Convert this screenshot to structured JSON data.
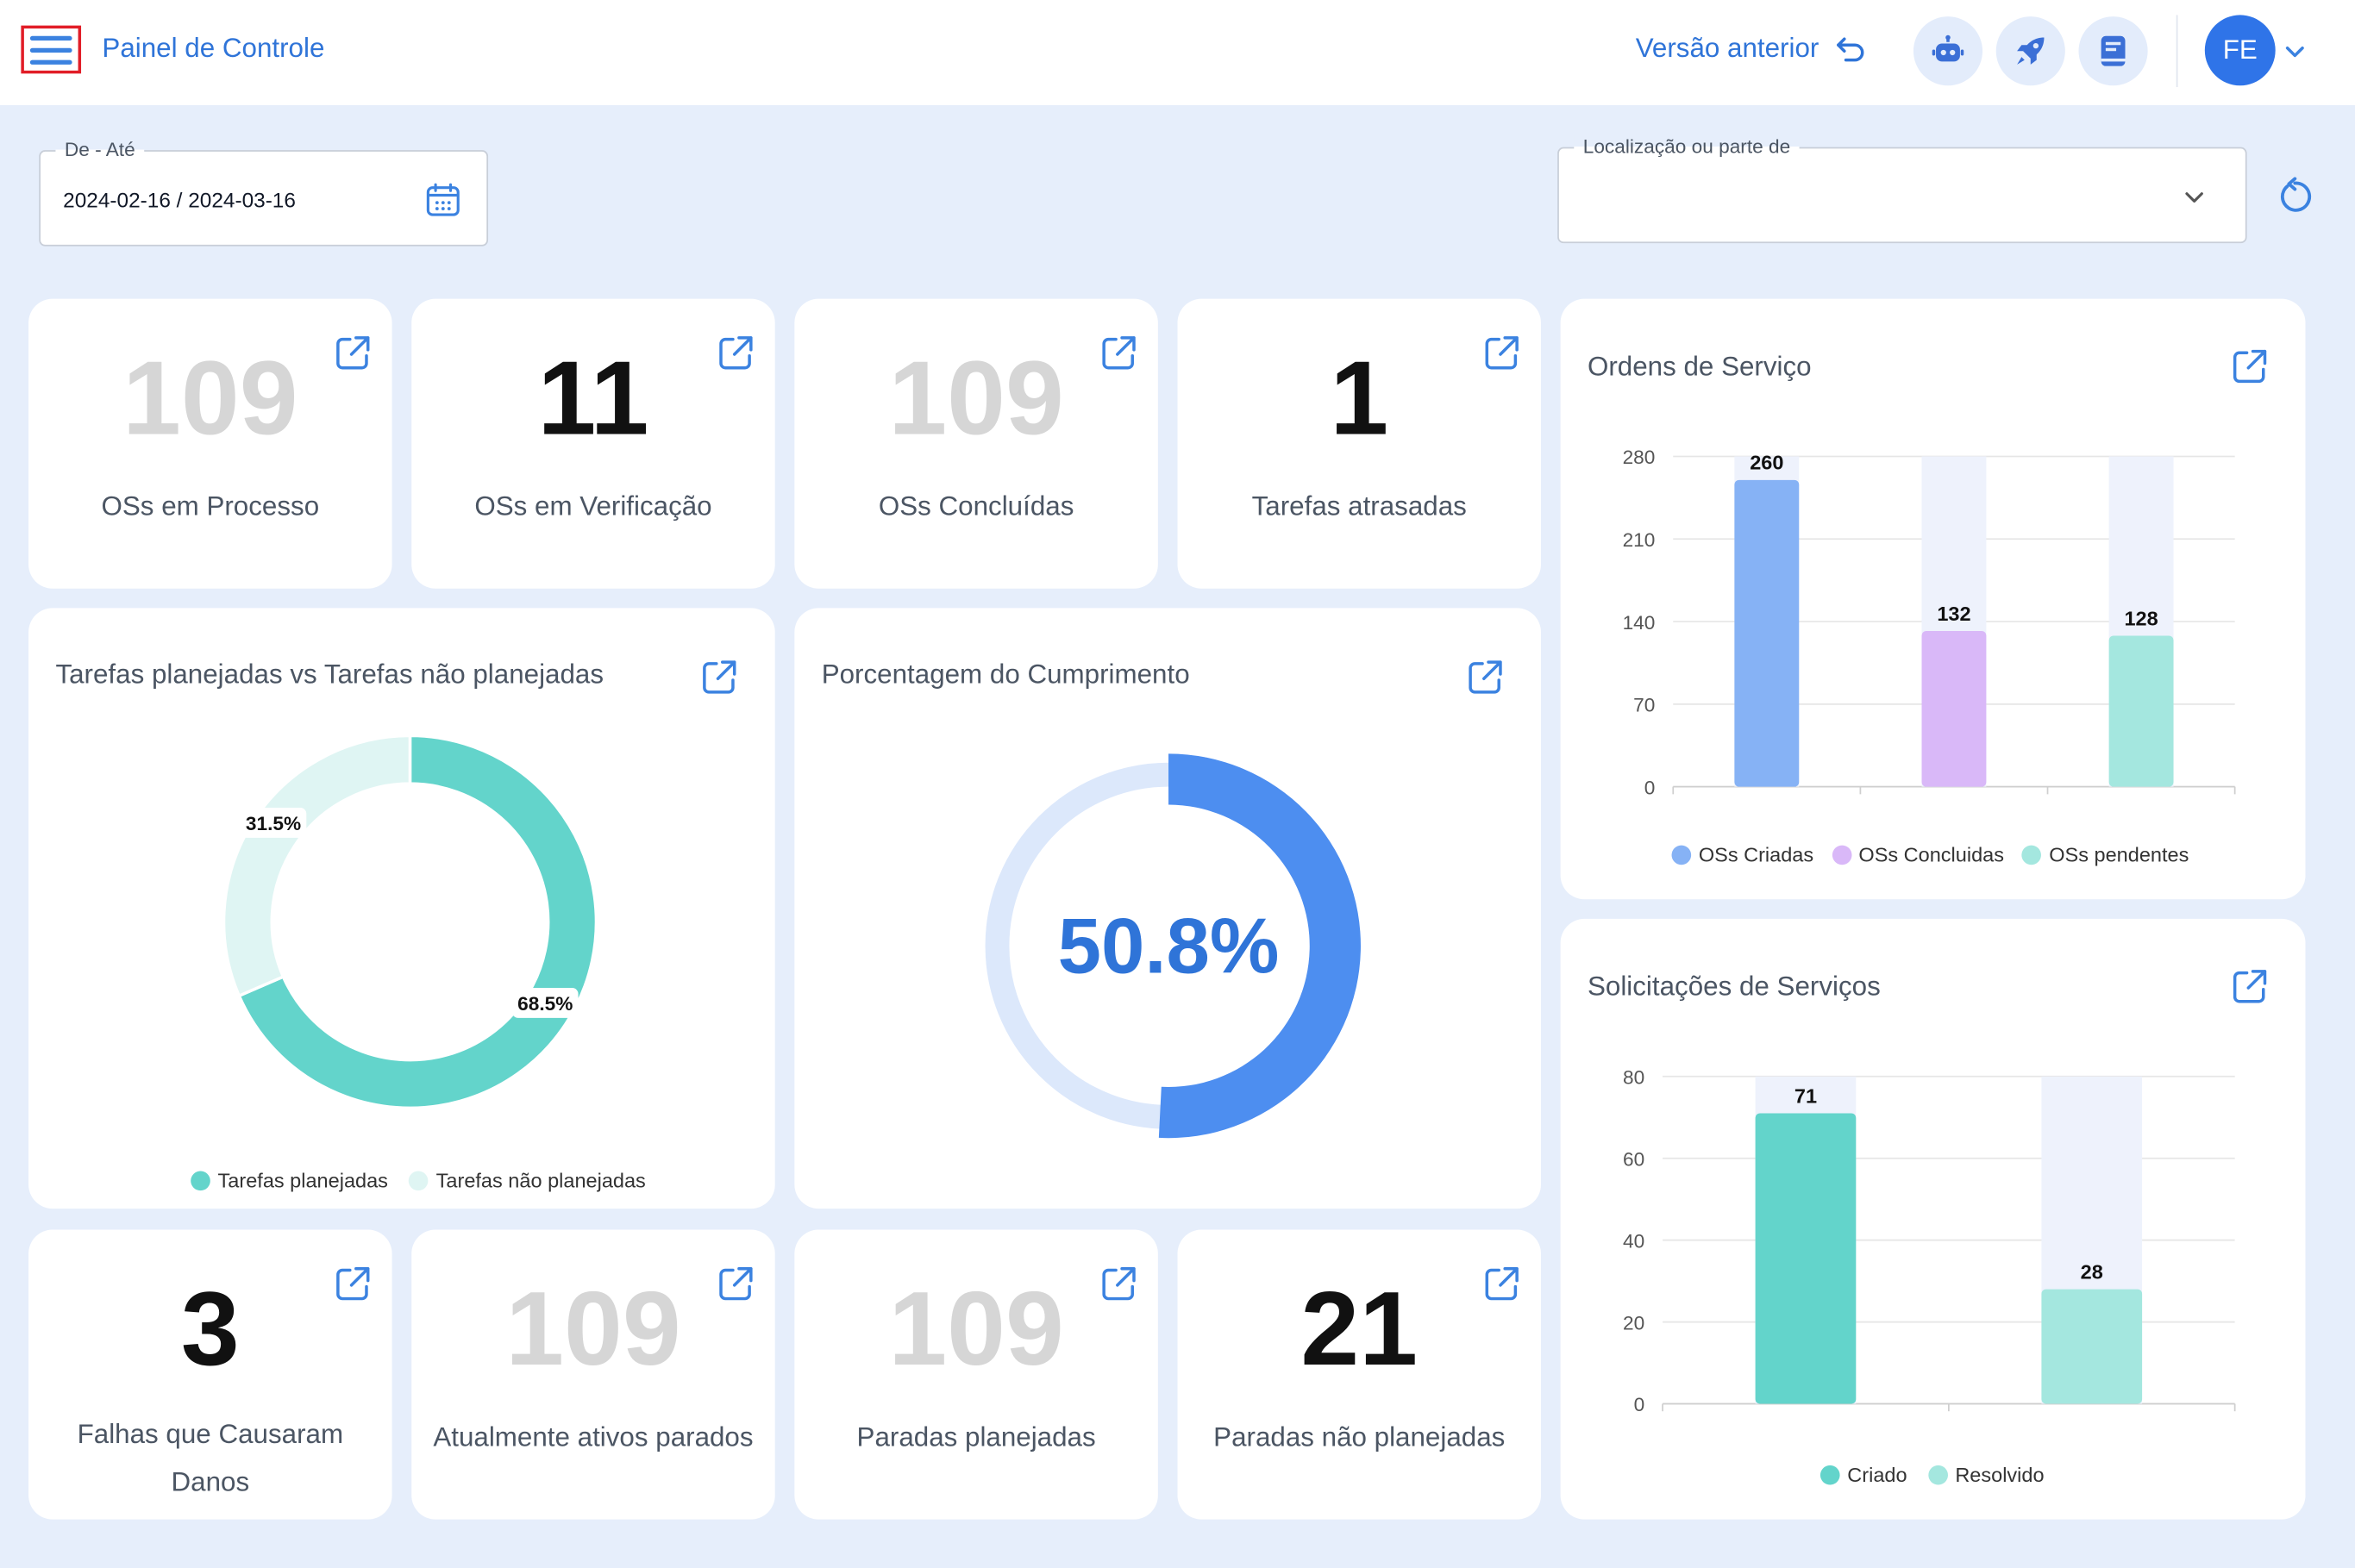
{
  "header": {
    "title": "Painel de Controle",
    "prev_version": "Versão anterior",
    "avatar_initials": "FE"
  },
  "filters": {
    "date_label": "De - Até",
    "date_value": "2024-02-16 / 2024-03-16",
    "location_label": "Localização ou parte de",
    "location_value": ""
  },
  "stats_top": [
    {
      "value": "109",
      "label": "OSs em Processo",
      "muted": true
    },
    {
      "value": "11",
      "label": "OSs em Verificação",
      "muted": false
    },
    {
      "value": "109",
      "label": "OSs Concluídas",
      "muted": true
    },
    {
      "value": "1",
      "label": "Tarefas atrasadas",
      "muted": false
    }
  ],
  "stats_bottom": [
    {
      "value": "3",
      "label": "Falhas que Causaram Danos",
      "muted": false
    },
    {
      "value": "109",
      "label": "Atualmente ativos parados",
      "muted": true
    },
    {
      "value": "109",
      "label": "Paradas planejadas",
      "muted": true
    },
    {
      "value": "21",
      "label": "Paradas não planejadas",
      "muted": false
    }
  ],
  "planned_card": {
    "title": "Tarefas planejadas vs Tarefas não planejadas"
  },
  "compliance_card": {
    "title": "Porcentagem do Cumprimento"
  },
  "orders_card": {
    "title": "Ordens de Serviço"
  },
  "requests_card": {
    "title": "Solicitações de Serviços"
  },
  "chart_data": [
    {
      "type": "pie",
      "title": "Tarefas planejadas vs Tarefas não planejadas",
      "categories": [
        "Tarefas planejadas",
        "Tarefas não planejadas"
      ],
      "values": [
        68.5,
        31.5
      ],
      "value_labels": [
        "68.5%",
        "31.5%"
      ],
      "colors": [
        "#63d4cb",
        "#dff5f3"
      ],
      "legend": "bottom"
    },
    {
      "type": "pie",
      "title": "Porcentagem do Cumprimento",
      "values": [
        50.8
      ],
      "center_label": "50.8%",
      "max": 100,
      "colors": [
        "#4d8ef0",
        "#dce8fb"
      ]
    },
    {
      "type": "bar",
      "title": "Ordens de Serviço",
      "categories": [
        "OSs Criadas",
        "OSs Concluidas",
        "OSs pendentes"
      ],
      "values": [
        260,
        132,
        128
      ],
      "colors": [
        "#86b2f5",
        "#d9b8f8",
        "#a4e7df"
      ],
      "yticks": [
        "0",
        "70",
        "140",
        "210",
        "280"
      ],
      "ylim": [
        0,
        280
      ],
      "legend": "bottom",
      "grid": true
    },
    {
      "type": "bar",
      "title": "Solicitações de Serviços",
      "categories": [
        "Criado",
        "Resolvido"
      ],
      "values": [
        71,
        28
      ],
      "colors": [
        "#63d4cb",
        "#a4e7df"
      ],
      "yticks": [
        "0",
        "20",
        "40",
        "60",
        "80"
      ],
      "ylim": [
        0,
        80
      ],
      "legend": "bottom",
      "grid": true
    }
  ],
  "theme": {
    "accent": "#2f74d8",
    "background": "#e6eefb",
    "card": "#ffffff"
  },
  "icons": {
    "menu": "hamburger-icon",
    "undo": "undo-icon",
    "bot": "robot-icon",
    "rocket": "rocket-icon",
    "book": "book-icon",
    "calendar": "calendar-icon",
    "chevron": "chevron-down-icon",
    "refresh": "refresh-icon",
    "external": "external-link-icon"
  }
}
